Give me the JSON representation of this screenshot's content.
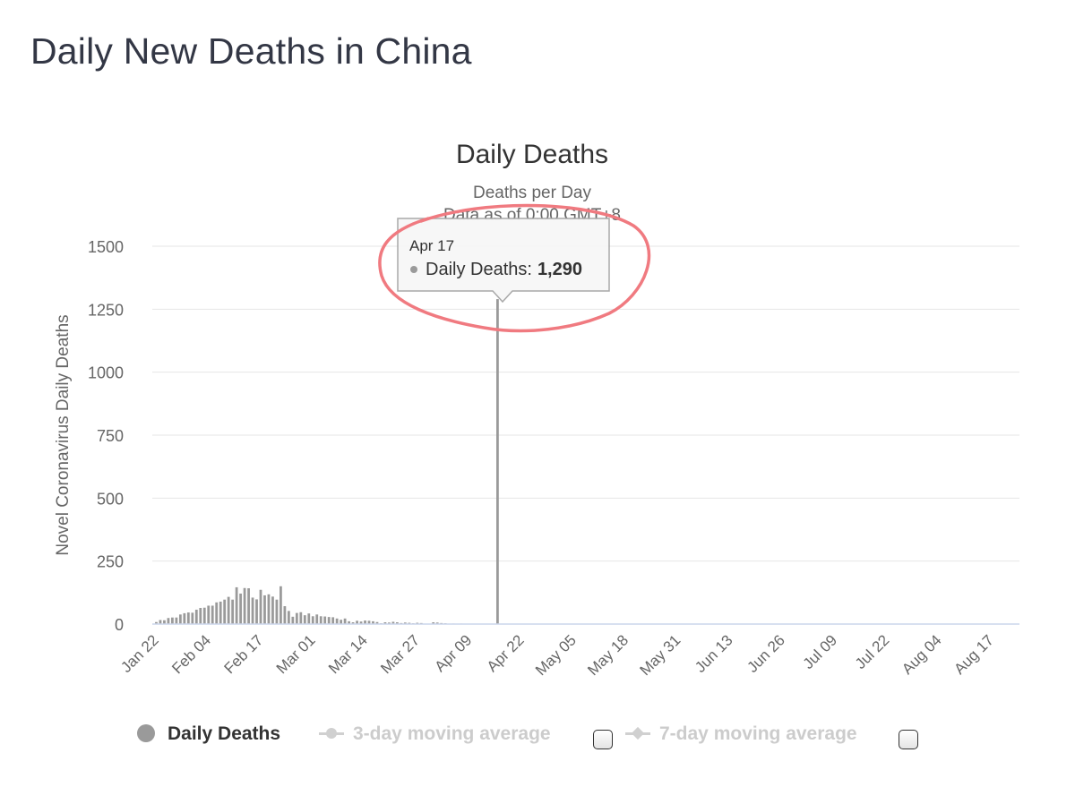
{
  "page": {
    "title": "Daily New Deaths in China"
  },
  "tooltip": {
    "date": "Apr 17",
    "series_label": "Daily Deaths:",
    "value_text": "1,290"
  },
  "legend": {
    "items": [
      {
        "label": "Daily Deaths",
        "active": true
      },
      {
        "label": "3-day moving average",
        "active": false
      },
      {
        "label": "7-day moving average",
        "active": false
      }
    ]
  },
  "colors": {
    "bars": "#9a9a9a",
    "grid": "#e6e6e6",
    "axis_line": "#ccd6eb",
    "annotation": "#f07a80",
    "title": "#333745"
  },
  "chart_data": {
    "type": "bar",
    "title": "Daily Deaths",
    "subtitle_lines": [
      "Deaths per Day",
      "Data as of 0:00 GMT+8"
    ],
    "ylabel": "Novel Coronavirus Daily Deaths",
    "xlabel": "",
    "ylim": [
      0,
      1500
    ],
    "y_ticks": [
      0,
      250,
      500,
      750,
      1000,
      1250,
      1500
    ],
    "x_start": "2020-01-22",
    "x_end": "2020-08-25",
    "x_ticks": [
      "Jan 22",
      "Feb 04",
      "Feb 17",
      "Mar 01",
      "Mar 14",
      "Mar 27",
      "Apr 09",
      "Apr 22",
      "May 05",
      "May 18",
      "May 31",
      "Jun 13",
      "Jun 26",
      "Jul 09",
      "Jul 22",
      "Aug 04",
      "Aug 17"
    ],
    "grid": true,
    "legend_position": "bottom",
    "series": [
      {
        "name": "Daily Deaths",
        "x": [
          "2020-01-23",
          "2020-01-24",
          "2020-01-25",
          "2020-01-26",
          "2020-01-27",
          "2020-01-28",
          "2020-01-29",
          "2020-01-30",
          "2020-01-31",
          "2020-02-01",
          "2020-02-02",
          "2020-02-03",
          "2020-02-04",
          "2020-02-05",
          "2020-02-06",
          "2020-02-07",
          "2020-02-08",
          "2020-02-09",
          "2020-02-10",
          "2020-02-11",
          "2020-02-12",
          "2020-02-13",
          "2020-02-14",
          "2020-02-15",
          "2020-02-16",
          "2020-02-17",
          "2020-02-18",
          "2020-02-19",
          "2020-02-20",
          "2020-02-21",
          "2020-02-22",
          "2020-02-23",
          "2020-02-24",
          "2020-02-25",
          "2020-02-26",
          "2020-02-27",
          "2020-02-28",
          "2020-02-29",
          "2020-03-01",
          "2020-03-02",
          "2020-03-03",
          "2020-03-04",
          "2020-03-05",
          "2020-03-06",
          "2020-03-07",
          "2020-03-08",
          "2020-03-09",
          "2020-03-10",
          "2020-03-11",
          "2020-03-12",
          "2020-03-13",
          "2020-03-14",
          "2020-03-15",
          "2020-03-16",
          "2020-03-17",
          "2020-03-18",
          "2020-03-19",
          "2020-03-20",
          "2020-03-21",
          "2020-03-22",
          "2020-03-23",
          "2020-03-24",
          "2020-03-25",
          "2020-03-26",
          "2020-03-27",
          "2020-03-28",
          "2020-03-29",
          "2020-03-30",
          "2020-03-31",
          "2020-04-01",
          "2020-04-02",
          "2020-04-03",
          "2020-04-04",
          "2020-04-05",
          "2020-04-06",
          "2020-04-07",
          "2020-04-08",
          "2020-04-09",
          "2020-04-10",
          "2020-04-11",
          "2020-04-12",
          "2020-04-13",
          "2020-04-14",
          "2020-04-15",
          "2020-04-16",
          "2020-04-17"
        ],
        "values": [
          8,
          16,
          15,
          24,
          26,
          26,
          38,
          43,
          46,
          45,
          57,
          64,
          65,
          73,
          73,
          86,
          89,
          97,
          108,
          97,
          146,
          121,
          143,
          142,
          105,
          98,
          136,
          114,
          118,
          109,
          97,
          150,
          71,
          52,
          29,
          44,
          47,
          35,
          42,
          31,
          38,
          31,
          30,
          28,
          27,
          22,
          17,
          22,
          11,
          7,
          13,
          10,
          14,
          13,
          11,
          8,
          3,
          7,
          6,
          9,
          7,
          4,
          6,
          5,
          3,
          5,
          4,
          1,
          1,
          7,
          6,
          4,
          3,
          1,
          2,
          0,
          2,
          0,
          0,
          0,
          0,
          0,
          0,
          0,
          0,
          1290
        ]
      }
    ]
  }
}
